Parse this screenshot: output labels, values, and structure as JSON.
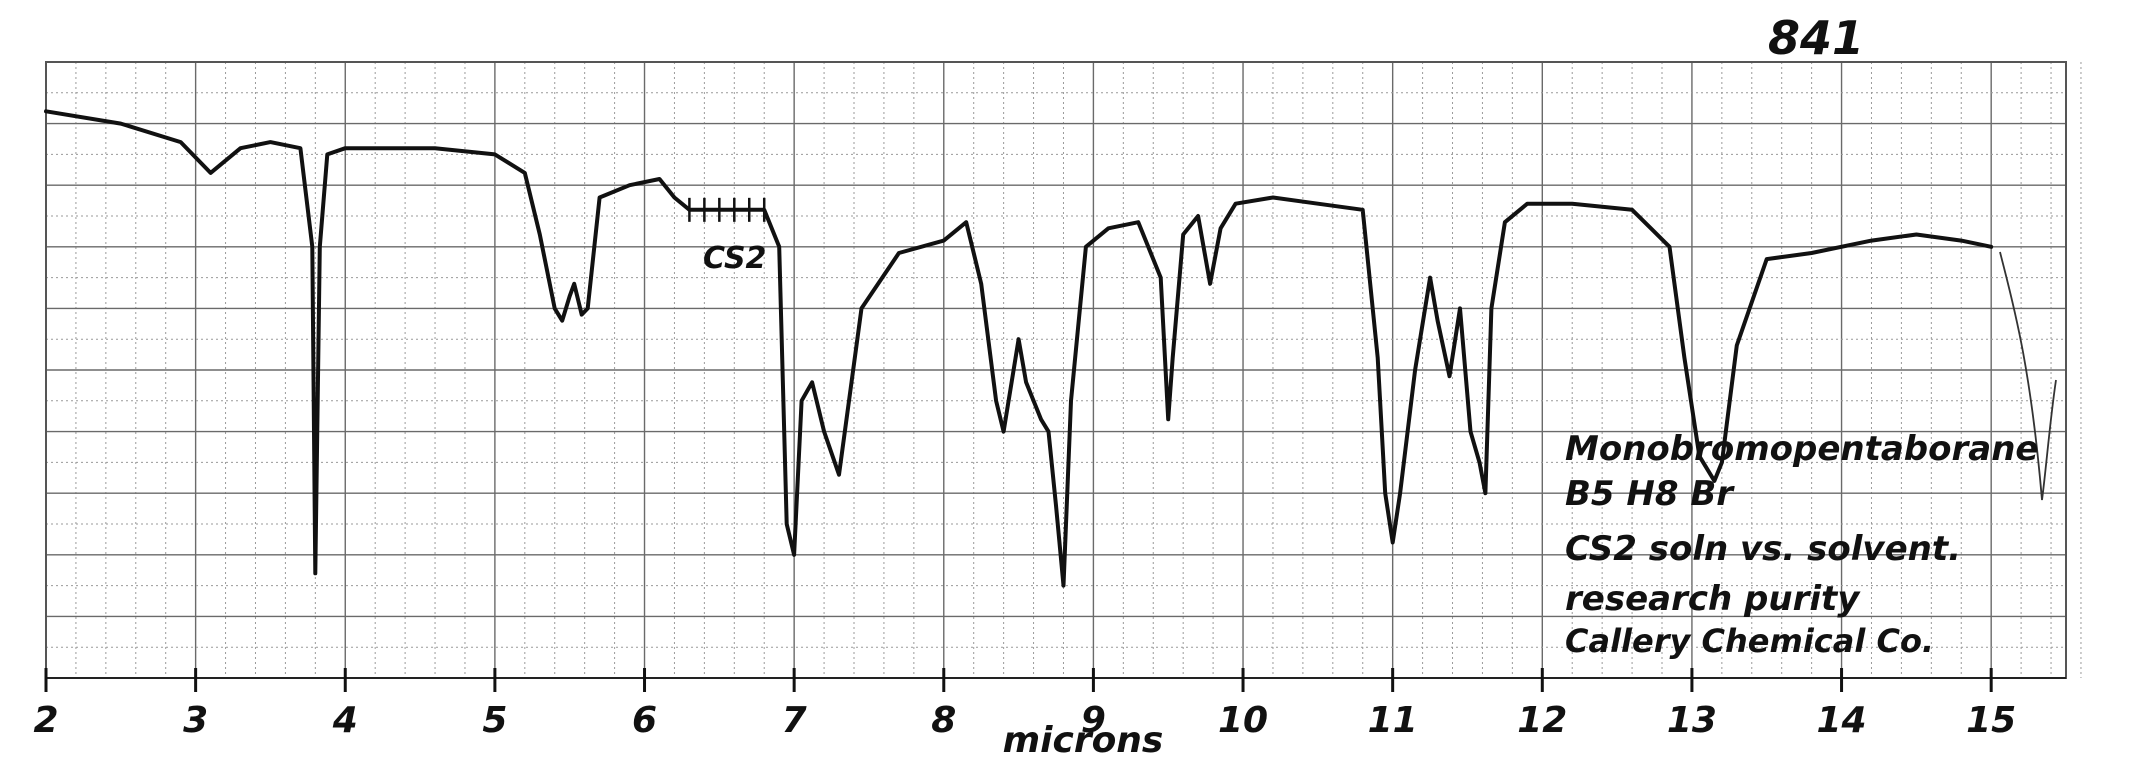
{
  "page_number": "841",
  "chart_data": {
    "type": "line",
    "title": "",
    "xlabel": "microns",
    "ylabel": "",
    "xlim": [
      2,
      15.5
    ],
    "ylim": [
      0,
      100
    ],
    "ylim_note_units": "percent transmittance (relative)",
    "grid": true,
    "x_ticks": [
      2,
      3,
      4,
      5,
      6,
      7,
      8,
      9,
      10,
      11,
      12,
      13,
      14,
      15
    ],
    "x_tick_labels": [
      "2",
      "3",
      "4",
      "5",
      "6",
      "7",
      "8",
      "9",
      "10",
      "11",
      "12",
      "13",
      "14",
      "15"
    ],
    "annotations": [
      {
        "text": "CS2",
        "x": 6.5,
        "y": 77
      }
    ],
    "legend_notes": [
      "Monobromopentaborane",
      "B5 H8 Br",
      "CS2 soln vs. solvent.",
      "research purity",
      "Callery Chemical Co."
    ],
    "series": [
      {
        "x": [
          2.0,
          2.5,
          2.9,
          3.1,
          3.3,
          3.5,
          3.7,
          3.78,
          3.8,
          3.83,
          3.88,
          4.0,
          4.3,
          4.6,
          5.0,
          5.2,
          5.3,
          5.4,
          5.45,
          5.5,
          5.53,
          5.58,
          5.62,
          5.7,
          5.9,
          6.1,
          6.2,
          6.3,
          6.5,
          6.8,
          6.9,
          6.95,
          7.0,
          7.05,
          7.12,
          7.2,
          7.3,
          7.45,
          7.7,
          8.0,
          8.15,
          8.25,
          8.35,
          8.4,
          8.5,
          8.55,
          8.65,
          8.7,
          8.75,
          8.8,
          8.85,
          8.95,
          9.1,
          9.3,
          9.45,
          9.5,
          9.53,
          9.6,
          9.7,
          9.78,
          9.85,
          9.95,
          10.2,
          10.5,
          10.8,
          10.9,
          10.95,
          11.0,
          11.05,
          11.15,
          11.25,
          11.3,
          11.38,
          11.45,
          11.52,
          11.58,
          11.62,
          11.66,
          11.75,
          11.9,
          12.2,
          12.6,
          12.85,
          12.95,
          13.05,
          13.15,
          13.2,
          13.3,
          13.5,
          13.8,
          14.2,
          14.5,
          14.8,
          15.0
        ],
        "y": [
          92,
          90,
          87,
          82,
          86,
          87,
          86,
          70,
          17,
          70,
          85,
          86,
          86,
          86,
          85,
          82,
          72,
          60,
          58,
          62,
          64,
          59,
          60,
          78,
          80,
          81,
          78,
          76,
          76,
          76,
          70,
          25,
          20,
          45,
          48,
          40,
          33,
          60,
          69,
          71,
          74,
          64,
          45,
          40,
          55,
          48,
          42,
          40,
          28,
          15,
          45,
          70,
          73,
          74,
          65,
          42,
          52,
          72,
          75,
          64,
          73,
          77,
          78,
          77,
          76,
          52,
          30,
          22,
          30,
          50,
          65,
          58,
          49,
          60,
          40,
          35,
          30,
          60,
          74,
          77,
          77,
          76,
          70,
          52,
          36,
          32,
          35,
          54,
          68,
          69,
          71,
          72,
          71,
          70
        ]
      }
    ]
  }
}
